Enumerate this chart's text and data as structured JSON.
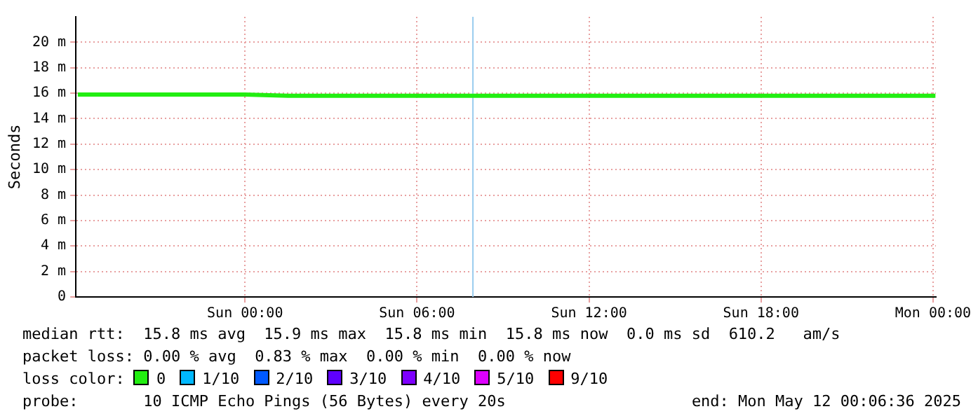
{
  "chart_data": {
    "type": "line",
    "ylabel": "Seconds",
    "x": [
      "2025-05-10T18:10",
      "2025-05-10T19:30",
      "2025-05-10T21:00",
      "2025-05-10T22:30",
      "2025-05-11T00:00",
      "2025-05-11T01:30",
      "2025-05-11T03:00",
      "2025-05-11T04:30",
      "2025-05-11T06:00",
      "2025-05-11T07:30",
      "2025-05-11T09:00",
      "2025-05-11T10:30",
      "2025-05-11T12:00",
      "2025-05-11T13:30",
      "2025-05-11T15:00",
      "2025-05-11T16:30",
      "2025-05-11T18:00",
      "2025-05-11T19:30",
      "2025-05-11T21:00",
      "2025-05-11T22:30",
      "2025-05-12T00:05"
    ],
    "series": [
      {
        "name": "0",
        "color": "#22ee11",
        "values": [
          15.9,
          15.9,
          15.9,
          15.9,
          15.9,
          15.8,
          15.8,
          15.8,
          15.8,
          15.8,
          15.8,
          15.8,
          15.8,
          15.8,
          15.8,
          15.8,
          15.8,
          15.8,
          15.8,
          15.8,
          15.8
        ]
      },
      {
        "name": "1/10",
        "color": "#00b8ff",
        "values": [
          null,
          null,
          null,
          null,
          null,
          null,
          null,
          null,
          null,
          null,
          null,
          null,
          null,
          null,
          null,
          null,
          null,
          null,
          null,
          null,
          null
        ]
      },
      {
        "name": "2/10",
        "color": "#0059ff",
        "values": [
          null,
          null,
          null,
          null,
          null,
          null,
          null,
          null,
          null,
          null,
          null,
          null,
          null,
          null,
          null,
          null,
          null,
          null,
          null,
          null,
          null
        ]
      },
      {
        "name": "3/10",
        "color": "#5e00ff",
        "values": [
          null,
          null,
          null,
          null,
          null,
          null,
          null,
          null,
          null,
          null,
          null,
          null,
          null,
          null,
          null,
          null,
          null,
          null,
          null,
          null,
          null
        ]
      },
      {
        "name": "4/10",
        "color": "#7e00ff",
        "values": [
          null,
          null,
          null,
          null,
          null,
          null,
          null,
          null,
          null,
          null,
          null,
          null,
          null,
          null,
          null,
          null,
          null,
          null,
          null,
          null,
          null
        ]
      },
      {
        "name": "5/10",
        "color": "#dd00ff",
        "values": [
          null,
          null,
          null,
          null,
          null,
          null,
          null,
          null,
          null,
          null,
          null,
          null,
          null,
          null,
          null,
          null,
          null,
          null,
          null,
          null,
          null
        ]
      },
      {
        "name": "9/10",
        "color": "#ff0000",
        "values": [
          null,
          null,
          null,
          null,
          null,
          null,
          null,
          null,
          null,
          null,
          null,
          null,
          null,
          null,
          null,
          null,
          null,
          null,
          null,
          null,
          null
        ]
      }
    ],
    "legend": "bottom",
    "legend_title": "loss color:",
    "xlim": [
      "2025-05-10T18:06",
      "2025-05-12T00:06"
    ],
    "xticks": [
      {
        "value": "2025-05-11T00:00",
        "label": "Sun 00:00"
      },
      {
        "value": "2025-05-11T06:00",
        "label": "Sun 06:00"
      },
      {
        "value": "2025-05-11T12:00",
        "label": "Sun 12:00"
      },
      {
        "value": "2025-05-11T18:00",
        "label": "Sun 18:00"
      },
      {
        "value": "2025-05-12T00:00",
        "label": "Mon 00:00"
      }
    ],
    "ylim": [
      0,
      22
    ],
    "yticks": [
      0,
      {
        "value": 2,
        "label": "2 m"
      },
      {
        "value": 4,
        "label": "4 m"
      },
      {
        "value": 6,
        "label": "6 m"
      },
      {
        "value": 8,
        "label": "8 m"
      },
      {
        "value": 10,
        "label": "10 m"
      },
      {
        "value": 12,
        "label": "12 m"
      },
      {
        "value": 14,
        "label": "14 m"
      },
      {
        "value": 16,
        "label": "16 m"
      },
      {
        "value": 18,
        "label": "18 m"
      },
      {
        "value": 20,
        "label": "20 m"
      }
    ],
    "grid": true,
    "ref_lines": [
      {
        "axis": "x",
        "value": "2025-05-11T07:57",
        "color": "#99ccee"
      }
    ],
    "annotations": [
      "median rtt:  15.8 ms avg  15.9 ms max  15.8 ms min  15.8 ms now  0.0 ms sd  610.2   am/s",
      "packet loss: 0.00 % avg  0.83 % max  0.00 % min  0.00 % now",
      "probe:       10 ICMP Echo Pings (56 Bytes) every 20s",
      "end: Mon May 12 00:06:36 2025"
    ]
  }
}
